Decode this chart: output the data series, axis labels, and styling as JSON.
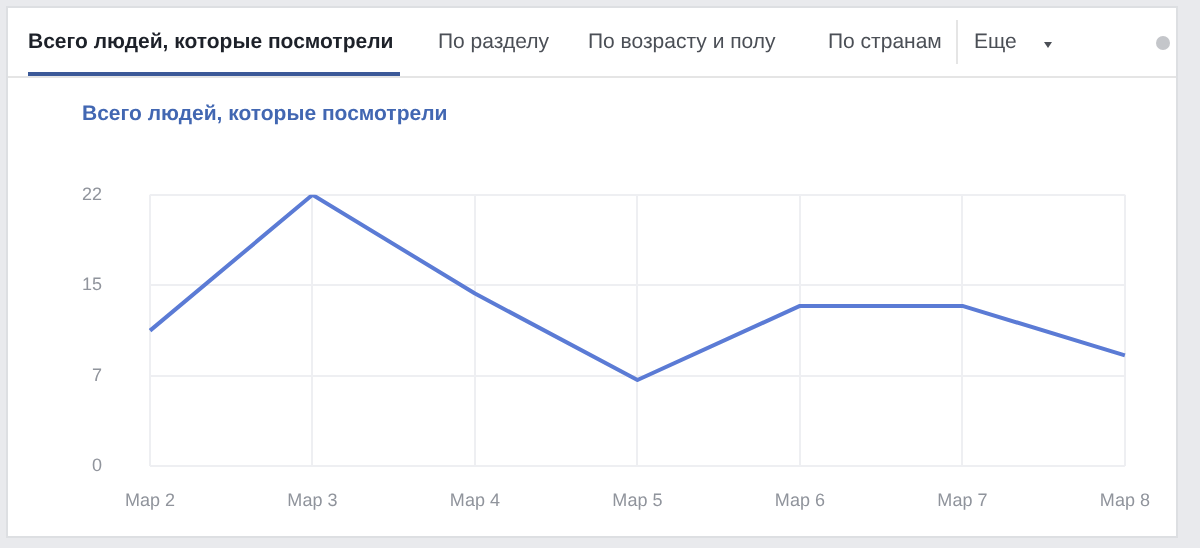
{
  "chart_data": {
    "type": "line",
    "title": "Всего людей, которые посмотрели",
    "annotations": [
      "Всего людей, которые посмотрели",
      "По разделу",
      "По возрасту и полу",
      "По странам",
      "Еще"
    ],
    "categories": [
      "Мар 2",
      "Мар 3",
      "Мар 4",
      "Мар 5",
      "Мар 6",
      "Мар 7",
      "Мар 8"
    ],
    "series": [
      {
        "color": "#5b7bd5",
        "values": [
          11,
          22,
          14,
          7,
          13,
          13,
          9
        ]
      }
    ],
    "ylim": [
      0,
      22
    ],
    "yticks": [
      0,
      {
        "value": 7.33,
        "label": "7"
      },
      {
        "value": 14.67,
        "label": "15"
      },
      22
    ],
    "grid": true,
    "legend": false,
    "marker": "none",
    "line_style": "solid"
  }
}
